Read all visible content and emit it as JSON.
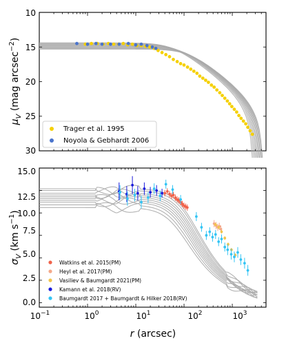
{
  "chart_data": [
    {
      "type": "scatter",
      "xscale": "log",
      "xlim": [
        0.1,
        5000
      ],
      "ylim": [
        30,
        10
      ],
      "y_inverted": true,
      "ylabel": "μ_V (mag arcsec^-2)",
      "ytick_labels": [
        "10",
        "15",
        "20",
        "25",
        "30"
      ],
      "grid": false,
      "legend_position": "lower-left",
      "legend": [
        "Trager et al. 1995",
        "Noyola & Gebhardt 2006"
      ],
      "series": [
        {
          "name": "Trager et al. 1995",
          "color": "#f5d000",
          "x": [
            0.9,
            1.2,
            1.6,
            2.1,
            2.7,
            3.5,
            4.4,
            5.5,
            6.8,
            8.5,
            10.5,
            13,
            16,
            19.5,
            24,
            29,
            35,
            42,
            50,
            60,
            72,
            85,
            100,
            118,
            138,
            160,
            185,
            212,
            245,
            280,
            320,
            370,
            420,
            480,
            550,
            620,
            700,
            790,
            880,
            980,
            1100,
            1230,
            1370,
            1520,
            1700,
            1900,
            2100,
            2350,
            2600
          ],
          "y": [
            14.6,
            14.5,
            14.5,
            14.6,
            14.5,
            14.6,
            14.6,
            14.5,
            14.7,
            14.6,
            14.8,
            14.8,
            14.9,
            15.0,
            15.2,
            15.5,
            15.8,
            16.1,
            16.4,
            16.8,
            17.1,
            17.4,
            17.6,
            17.9,
            18.2,
            18.5,
            18.8,
            19.2,
            19.5,
            19.8,
            20.1,
            20.5,
            20.8,
            21.2,
            21.6,
            22.0,
            22.4,
            22.8,
            23.2,
            23.6,
            24.0,
            24.4,
            24.9,
            25.3,
            25.7,
            26.1,
            26.6,
            27.1,
            27.6
          ]
        },
        {
          "name": "Noyola & Gebhardt 2006",
          "color": "#4a74cc",
          "x": [
            0.6,
            1.0,
            1.5,
            2.0,
            3.0,
            4.5,
            7.0,
            10,
            13,
            17,
            22,
            26
          ],
          "y": [
            14.5,
            14.6,
            14.5,
            14.6,
            14.6,
            14.6,
            14.5,
            14.7,
            14.6,
            14.8,
            15.0,
            15.2
          ]
        }
      ],
      "model_curves": {
        "color": "#aaaaaa",
        "count": 10,
        "central_values": [
          14.4,
          14.5,
          14.6,
          14.7,
          14.8,
          14.9,
          15.0,
          15.1,
          15.2,
          15.3
        ]
      }
    },
    {
      "type": "scatter",
      "xscale": "log",
      "xlim": [
        0.1,
        5000
      ],
      "ylim": [
        -0.5,
        15
      ],
      "xlabel": "r (arcsec)",
      "ylabel": "σ_V (km s^-1)",
      "xtick_labels": [
        "10^-1",
        "10^0",
        "10^1",
        "10^2",
        "10^3"
      ],
      "ytick_labels": [
        "0.0",
        "2.5",
        "5.0",
        "7.5",
        "10.0",
        "12.5",
        "15.0"
      ],
      "grid": false,
      "legend_position": "lower-left",
      "legend": [
        "Watkins et al. 2015(PM)",
        "Heyl et al. 2017(PM)",
        "Vasiliev & Baumgardt 2021(PM)",
        "Kamann et al. 2018(RV)",
        "Baumgardt 2017 + Baumgardt & Hilker 2018(RV)"
      ],
      "series": [
        {
          "name": "Watkins et al. 2015(PM)",
          "color": "#f0624a",
          "x": [
            40,
            45,
            50,
            55,
            60,
            66,
            72,
            78,
            85,
            92,
            100,
            108,
            117
          ],
          "y": [
            12.2,
            12.4,
            12.1,
            11.9,
            12.0,
            11.7,
            11.5,
            11.4,
            11.2,
            11.0,
            10.8,
            10.7,
            10.6
          ],
          "err": [
            0.35,
            0.35,
            0.35,
            0.35,
            0.35,
            0.35,
            0.35,
            0.35,
            0.35,
            0.35,
            0.35,
            0.35,
            0.35
          ]
        },
        {
          "name": "Heyl et al. 2017(PM)",
          "color": "#f4a98a",
          "x": [
            420,
            460,
            500,
            540,
            580
          ],
          "y": [
            8.8,
            8.6,
            8.4,
            8.5,
            8.2
          ],
          "err": [
            0.4,
            0.4,
            0.4,
            0.4,
            0.4
          ]
        },
        {
          "name": "Vasiliev & Baumgardt 2021(PM)",
          "color": "#f2c44e",
          "x": [
            450,
            520,
            600,
            700,
            820,
            960,
            1150
          ],
          "y": [
            8.7,
            8.4,
            7.9,
            7.2,
            6.5,
            5.9,
            5.3
          ],
          "err": [
            0.2,
            0.2,
            0.2,
            0.2,
            0.2,
            0.2,
            0.2
          ]
        },
        {
          "name": "Kamann et al. 2018(RV)",
          "color": "#1a1adb",
          "x": [
            4.5,
            6.5,
            8.5,
            11,
            15,
            20,
            27,
            35
          ],
          "y": [
            12.4,
            12.1,
            13.1,
            12.2,
            12.7,
            12.3,
            12.5,
            12.2
          ],
          "err": [
            1.0,
            0.9,
            1.0,
            0.8,
            0.7,
            0.6,
            0.6,
            0.5
          ]
        },
        {
          "name": "Baumgardt 2017 + Baumgardt & Hilker 2018(RV)",
          "color": "#33c4f4",
          "x": [
            4.7,
            6.7,
            9.5,
            13,
            18,
            24,
            32,
            42,
            58,
            85,
            180,
            230,
            290,
            340,
            390,
            450,
            520,
            600,
            700,
            800,
            950,
            1100,
            1300,
            1500,
            1800,
            2100
          ],
          "y": [
            12.3,
            11.6,
            12.0,
            11.2,
            11.7,
            12.7,
            11.9,
            13.2,
            12.6,
            11.5,
            9.6,
            8.4,
            7.5,
            7.9,
            7.3,
            7.6,
            6.8,
            7.1,
            6.2,
            5.9,
            5.4,
            5.1,
            5.6,
            4.8,
            4.4,
            3.6
          ],
          "err": [
            0.8,
            0.8,
            0.7,
            0.7,
            0.6,
            0.6,
            0.6,
            0.5,
            0.5,
            0.5,
            0.5,
            0.5,
            0.5,
            0.5,
            0.5,
            0.5,
            0.5,
            0.5,
            0.5,
            0.6,
            0.6,
            0.6,
            0.6,
            0.6,
            0.6,
            0.6
          ]
        }
      ],
      "model_curves": {
        "color": "#aaaaaa",
        "count": 10,
        "central_values": [
          10.6,
          10.9,
          11.2,
          11.4,
          11.6,
          11.8,
          12.0,
          12.2,
          12.5,
          12.7
        ]
      }
    }
  ]
}
